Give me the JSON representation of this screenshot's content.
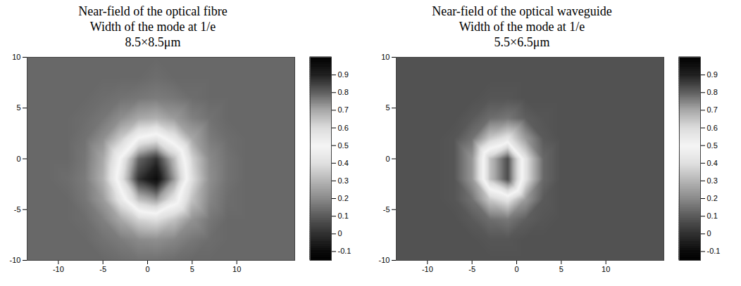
{
  "chart_data": [
    {
      "type": "heatmap",
      "title": "Near-field of the optical fibre",
      "subtitle": "Width of the mode at 1/e",
      "mode_width": "8.5×8.5μm",
      "x": [
        -15,
        -13,
        -11,
        -9,
        -7,
        -5,
        -3,
        -1,
        1,
        3,
        5,
        7,
        9,
        11,
        13,
        15,
        17
      ],
      "y": [
        10,
        8,
        6,
        4,
        2,
        0,
        -2,
        -4,
        -6,
        -8,
        -10
      ],
      "values": [
        [
          0.13,
          0.13,
          0.13,
          0.13,
          0.13,
          0.13,
          0.13,
          0.13,
          0.13,
          0.13,
          0.13,
          0.13,
          0.13,
          0.13,
          0.13,
          0.13,
          0.13
        ],
        [
          0.13,
          0.13,
          0.13,
          0.13,
          0.13,
          0.13,
          0.13,
          0.13,
          0.14,
          0.13,
          0.13,
          0.13,
          0.13,
          0.13,
          0.13,
          0.13,
          0.13
        ],
        [
          0.13,
          0.13,
          0.13,
          0.13,
          0.13,
          0.14,
          0.15,
          0.16,
          0.17,
          0.16,
          0.14,
          0.13,
          0.13,
          0.13,
          0.13,
          0.13,
          0.13
        ],
        [
          0.13,
          0.13,
          0.13,
          0.13,
          0.14,
          0.16,
          0.21,
          0.27,
          0.29,
          0.24,
          0.18,
          0.15,
          0.13,
          0.13,
          0.13,
          0.13,
          0.13
        ],
        [
          0.13,
          0.13,
          0.13,
          0.13,
          0.15,
          0.21,
          0.35,
          0.51,
          0.56,
          0.44,
          0.27,
          0.17,
          0.14,
          0.13,
          0.13,
          0.13,
          0.13
        ],
        [
          0.13,
          0.13,
          0.13,
          0.13,
          0.16,
          0.27,
          0.51,
          0.79,
          0.87,
          0.66,
          0.37,
          0.2,
          0.15,
          0.13,
          0.13,
          0.13,
          0.13
        ],
        [
          0.13,
          0.13,
          0.13,
          0.14,
          0.17,
          0.29,
          0.56,
          0.87,
          0.96,
          0.72,
          0.4,
          0.21,
          0.15,
          0.13,
          0.13,
          0.13,
          0.13
        ],
        [
          0.13,
          0.13,
          0.13,
          0.13,
          0.16,
          0.24,
          0.44,
          0.66,
          0.72,
          0.56,
          0.33,
          0.19,
          0.14,
          0.13,
          0.13,
          0.13,
          0.13
        ],
        [
          0.13,
          0.13,
          0.13,
          0.13,
          0.14,
          0.18,
          0.27,
          0.37,
          0.4,
          0.33,
          0.22,
          0.16,
          0.13,
          0.13,
          0.13,
          0.13,
          0.13
        ],
        [
          0.13,
          0.13,
          0.13,
          0.13,
          0.13,
          0.15,
          0.17,
          0.2,
          0.21,
          0.19,
          0.16,
          0.14,
          0.13,
          0.13,
          0.13,
          0.13,
          0.13
        ],
        [
          0.13,
          0.13,
          0.13,
          0.13,
          0.13,
          0.13,
          0.14,
          0.15,
          0.15,
          0.14,
          0.13,
          0.13,
          0.13,
          0.13,
          0.13,
          0.13,
          0.13
        ]
      ],
      "xlim": [
        -13.5,
        16.5
      ],
      "ylim": [
        -10,
        10
      ],
      "xticks": [
        -10,
        -5,
        0,
        5,
        10
      ],
      "yticks": [
        -10,
        -5,
        0,
        5,
        10
      ],
      "colorbar_range": [
        -0.15,
        1.0
      ],
      "colorbar_ticks": [
        -0.1,
        0,
        0.1,
        0.2,
        0.3,
        0.4,
        0.5,
        0.6,
        0.7,
        0.8,
        0.9
      ]
    },
    {
      "type": "heatmap",
      "title": "Near-field of the optical waveguide",
      "subtitle": "Width of the mode at 1/e",
      "mode_width": "5.5×6.5μm",
      "x": [
        -15,
        -13,
        -11,
        -9,
        -7,
        -5,
        -3,
        -1,
        1,
        3,
        5,
        7,
        9,
        11,
        13,
        15,
        17
      ],
      "y": [
        10,
        8,
        6,
        4,
        2,
        0,
        -2,
        -4,
        -6,
        -8,
        -10
      ],
      "values": [
        [
          0.08,
          0.08,
          0.08,
          0.08,
          0.08,
          0.08,
          0.08,
          0.08,
          0.08,
          0.08,
          0.08,
          0.08,
          0.08,
          0.08,
          0.08,
          0.08,
          0.08
        ],
        [
          0.08,
          0.08,
          0.08,
          0.08,
          0.08,
          0.08,
          0.08,
          0.08,
          0.08,
          0.08,
          0.08,
          0.08,
          0.08,
          0.08,
          0.08,
          0.08,
          0.08
        ],
        [
          0.08,
          0.08,
          0.08,
          0.08,
          0.08,
          0.08,
          0.09,
          0.09,
          0.08,
          0.08,
          0.08,
          0.08,
          0.08,
          0.08,
          0.08,
          0.08,
          0.08
        ],
        [
          0.08,
          0.08,
          0.08,
          0.08,
          0.08,
          0.1,
          0.14,
          0.16,
          0.11,
          0.09,
          0.08,
          0.08,
          0.08,
          0.08,
          0.08,
          0.08,
          0.08
        ],
        [
          0.08,
          0.08,
          0.08,
          0.08,
          0.09,
          0.15,
          0.35,
          0.43,
          0.24,
          0.1,
          0.08,
          0.08,
          0.08,
          0.08,
          0.08,
          0.08,
          0.08
        ],
        [
          0.08,
          0.08,
          0.08,
          0.08,
          0.09,
          0.23,
          0.65,
          0.83,
          0.42,
          0.13,
          0.08,
          0.08,
          0.08,
          0.08,
          0.08,
          0.08,
          0.08
        ],
        [
          0.08,
          0.08,
          0.08,
          0.08,
          0.09,
          0.23,
          0.65,
          0.83,
          0.42,
          0.13,
          0.08,
          0.08,
          0.08,
          0.08,
          0.08,
          0.08,
          0.08
        ],
        [
          0.08,
          0.08,
          0.08,
          0.08,
          0.09,
          0.15,
          0.35,
          0.43,
          0.24,
          0.1,
          0.08,
          0.08,
          0.08,
          0.08,
          0.08,
          0.08,
          0.08
        ],
        [
          0.08,
          0.08,
          0.08,
          0.08,
          0.08,
          0.1,
          0.14,
          0.16,
          0.11,
          0.09,
          0.08,
          0.08,
          0.08,
          0.08,
          0.08,
          0.08,
          0.08
        ],
        [
          0.08,
          0.08,
          0.08,
          0.08,
          0.08,
          0.08,
          0.09,
          0.09,
          0.08,
          0.08,
          0.08,
          0.08,
          0.08,
          0.08,
          0.08,
          0.08,
          0.08
        ],
        [
          0.08,
          0.08,
          0.08,
          0.08,
          0.08,
          0.08,
          0.08,
          0.08,
          0.08,
          0.08,
          0.08,
          0.08,
          0.08,
          0.08,
          0.08,
          0.08,
          0.08
        ]
      ],
      "xlim": [
        -13.5,
        16.5
      ],
      "ylim": [
        -10,
        10
      ],
      "xticks": [
        -10,
        -5,
        0,
        5,
        10
      ],
      "yticks": [
        -10,
        -5,
        0,
        5,
        10
      ],
      "colorbar_range": [
        -0.15,
        1.0
      ],
      "colorbar_ticks": [
        -0.1,
        0,
        0.1,
        0.2,
        0.3,
        0.4,
        0.5,
        0.6,
        0.7,
        0.8,
        0.9
      ]
    }
  ]
}
